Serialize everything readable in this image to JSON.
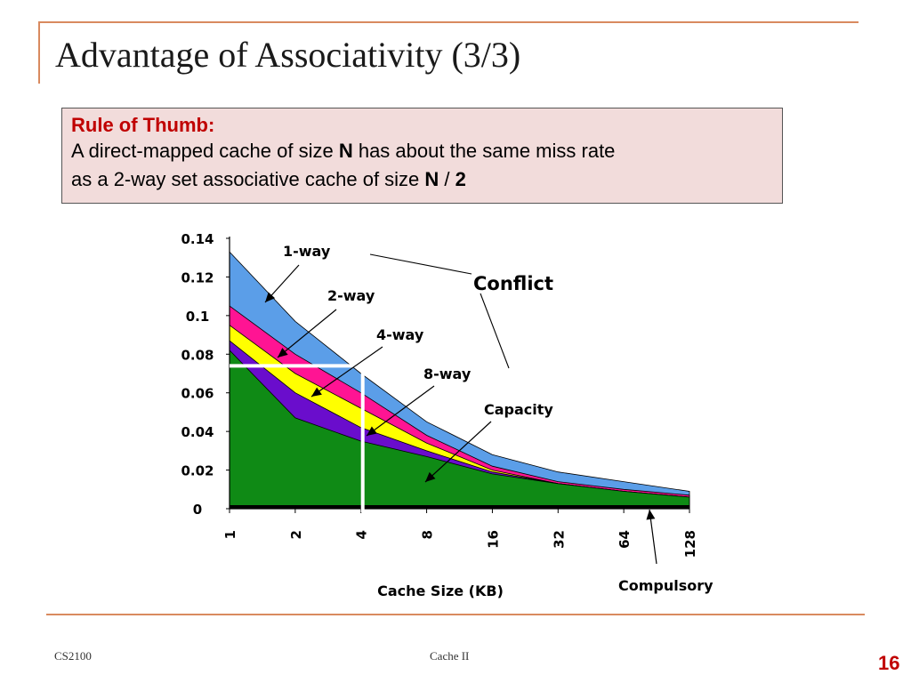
{
  "slide": {
    "title": "Advantage of Associativity (3/3)",
    "rule_heading": "Rule of Thumb:",
    "rule_line1_a": "A direct-mapped cache of size ",
    "rule_line1_b": "N",
    "rule_line1_c": " has about the same miss rate",
    "rule_line2_a": "as a 2-way set associative cache of size ",
    "rule_line2_b": "N",
    "rule_line2_c": " / ",
    "rule_line2_d": "2"
  },
  "footer": {
    "left": "CS2100",
    "center": "Cache II",
    "page": "16"
  },
  "colors": {
    "accent": "#d98a5f",
    "rule_bg": "#f2dcdb",
    "rule_head": "#c00000",
    "one_way": "#5b9ee8",
    "two_way": "#ff1493",
    "four_way": "#ffff00",
    "eight_way": "#6a0dcc",
    "capacity": "#0f8a15",
    "compulsory": "#000000"
  },
  "chart_data": {
    "type": "area",
    "xlabel": "Cache Size (KB)",
    "ylabel": "",
    "categories": [
      "1",
      "2",
      "4",
      "8",
      "16",
      "32",
      "64",
      "128"
    ],
    "yticks": [
      "0",
      "0.02",
      "0.04",
      "0.06",
      "0.08",
      "0.1",
      "0.12",
      "0.14"
    ],
    "ylim": [
      0,
      0.14
    ],
    "series": [
      {
        "name": "1-way",
        "values": [
          0.133,
          0.097,
          0.07,
          0.045,
          0.028,
          0.019,
          0.014,
          0.009
        ],
        "color": "#5b9ee8"
      },
      {
        "name": "2-way",
        "values": [
          0.105,
          0.08,
          0.06,
          0.038,
          0.022,
          0.014,
          0.01,
          0.007
        ],
        "color": "#ff1493"
      },
      {
        "name": "4-way",
        "values": [
          0.095,
          0.07,
          0.052,
          0.034,
          0.02,
          0.013,
          0.009,
          0.006
        ],
        "color": "#ffff00"
      },
      {
        "name": "8-way",
        "values": [
          0.087,
          0.06,
          0.042,
          0.03,
          0.019,
          0.013,
          0.009,
          0.006
        ],
        "color": "#6a0dcc"
      },
      {
        "name": "Capacity",
        "values": [
          0.082,
          0.047,
          0.035,
          0.027,
          0.018,
          0.013,
          0.009,
          0.006
        ],
        "color": "#0f8a15"
      },
      {
        "name": "Compulsory",
        "values": [
          0.001,
          0.001,
          0.001,
          0.001,
          0.001,
          0.001,
          0.001,
          0.001
        ],
        "color": "#000000"
      }
    ],
    "annotations": [
      "1-way",
      "2-way",
      "4-way",
      "8-way",
      "Conflict",
      "Capacity",
      "Compulsory"
    ],
    "highlight": {
      "y": 0.074,
      "x": "4"
    },
    "grid": false,
    "legend": "none"
  }
}
